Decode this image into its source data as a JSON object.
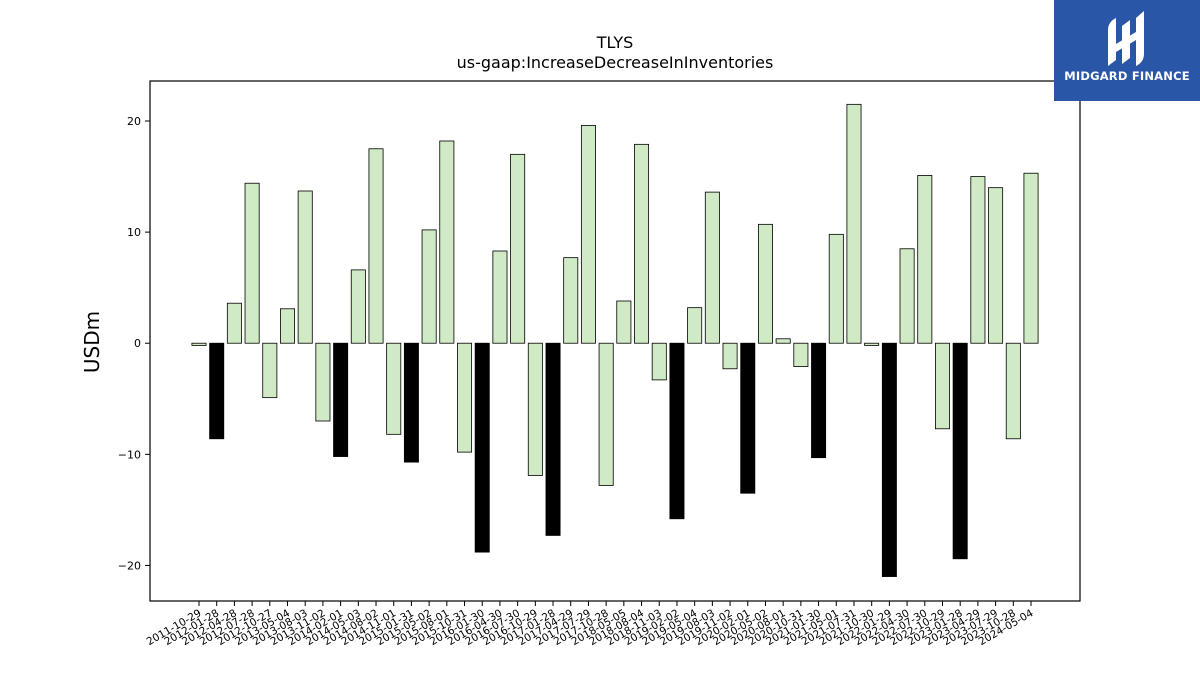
{
  "chart_data": {
    "type": "bar",
    "title": "TLYS",
    "subtitle": "us-gaap:IncreaseDecreaseInInventories",
    "xlabel": "",
    "ylabel": "USDm",
    "ylim": [
      -23.2,
      23.6
    ],
    "yticks": [
      -20,
      -10,
      0,
      10,
      20
    ],
    "grid": false,
    "colors": {
      "normal": "#cfeac4",
      "highlight": "#000000",
      "edge": "#000000"
    },
    "categories": [
      "2011-10-29",
      "2012-01-28",
      "2012-04-28",
      "2012-07-28",
      "2012-10-27",
      "2013-05-04",
      "2013-08-03",
      "2013-11-02",
      "2014-02-01",
      "2014-05-03",
      "2014-08-02",
      "2014-11-01",
      "2015-01-31",
      "2015-05-02",
      "2015-08-01",
      "2015-10-31",
      "2016-01-30",
      "2016-04-30",
      "2016-07-30",
      "2016-10-29",
      "2017-01-28",
      "2017-04-29",
      "2017-07-29",
      "2017-10-28",
      "2018-05-05",
      "2018-08-04",
      "2018-11-03",
      "2019-02-02",
      "2019-05-04",
      "2019-08-03",
      "2019-11-02",
      "2020-02-01",
      "2020-05-02",
      "2020-08-01",
      "2020-10-31",
      "2021-01-30",
      "2021-05-01",
      "2021-07-31",
      "2021-10-30",
      "2022-01-29",
      "2022-04-30",
      "2022-07-30",
      "2022-10-29",
      "2023-01-28",
      "2023-04-29",
      "2023-07-29",
      "2023-10-28",
      "2024-05-04"
    ],
    "values": [
      -0.2,
      -8.6,
      3.6,
      14.4,
      -4.9,
      3.1,
      13.7,
      -7.0,
      -10.2,
      6.6,
      17.5,
      -8.2,
      -10.7,
      10.2,
      18.2,
      -9.8,
      -18.8,
      8.3,
      17.0,
      -11.9,
      -17.3,
      7.7,
      19.6,
      -12.8,
      3.8,
      17.9,
      -3.3,
      -15.8,
      3.2,
      13.6,
      -2.3,
      -13.5,
      10.7,
      0.4,
      -2.1,
      -10.3,
      9.8,
      21.5,
      -0.2,
      -21.0,
      8.5,
      15.1,
      -7.7,
      -19.4,
      15.0,
      14.0,
      -8.6,
      15.3
    ],
    "highlight": [
      false,
      true,
      false,
      false,
      false,
      false,
      false,
      false,
      true,
      false,
      false,
      false,
      true,
      false,
      false,
      false,
      true,
      false,
      false,
      false,
      true,
      false,
      false,
      false,
      false,
      false,
      false,
      true,
      false,
      false,
      false,
      true,
      false,
      false,
      false,
      true,
      false,
      false,
      false,
      true,
      false,
      false,
      false,
      true,
      false,
      false,
      false,
      false
    ]
  },
  "logo": {
    "text": "MIDGARD FINANCE",
    "icon": "midgard-logo-icon"
  }
}
